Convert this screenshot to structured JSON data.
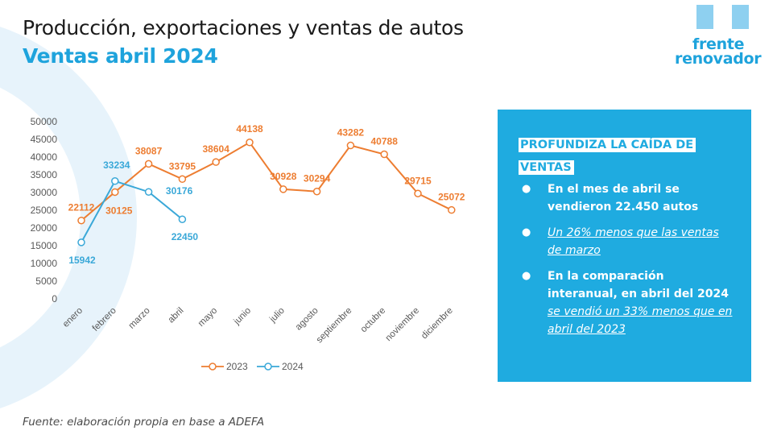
{
  "header": {
    "title": "Producción, exportaciones y ventas de autos",
    "subtitle": "Ventas abril 2024"
  },
  "logo": {
    "line1": "frente",
    "line2": "renovador"
  },
  "colors": {
    "series_2023": "#ed7d31",
    "series_2024": "#3aa8d8",
    "accent_blue": "#1fabe0",
    "title_blue": "#1ea3dc"
  },
  "chart_data": {
    "type": "line",
    "title": "",
    "xlabel": "",
    "ylabel": "",
    "ylim": [
      0,
      50000
    ],
    "yticks": [
      0,
      5000,
      10000,
      15000,
      20000,
      25000,
      30000,
      35000,
      40000,
      45000,
      50000
    ],
    "grid": false,
    "legend_position": "bottom",
    "categories": [
      "enero",
      "febrero",
      "marzo",
      "abril",
      "mayo",
      "junio",
      "julio",
      "agosto",
      "septiembre",
      "octubre",
      "noviembre",
      "diciembre"
    ],
    "series": [
      {
        "name": "2023",
        "values": [
          22112,
          30125,
          38087,
          33795,
          38604,
          44138,
          30928,
          30294,
          43282,
          40788,
          29715,
          25072
        ]
      },
      {
        "name": "2024",
        "values": [
          15942,
          33234,
          30176,
          22450
        ]
      }
    ]
  },
  "info_box": {
    "heading_line1": "PROFUNDIZA LA CAÍDA DE",
    "heading_line2": "VENTAS",
    "bullet_glyph": "●",
    "items": [
      {
        "text": "En el mes de abril se vendieron 22.450 autos",
        "emphasis": ""
      },
      {
        "text": "",
        "emphasis": "Un 26% menos que las ventas de marzo"
      },
      {
        "text": "En la comparación interanual, en abril del 2024 ",
        "emphasis": "se vendió un 33% menos que en abril del 2023"
      }
    ]
  },
  "footer": {
    "source": "Fuente: elaboración propia en base a ADEFA"
  }
}
